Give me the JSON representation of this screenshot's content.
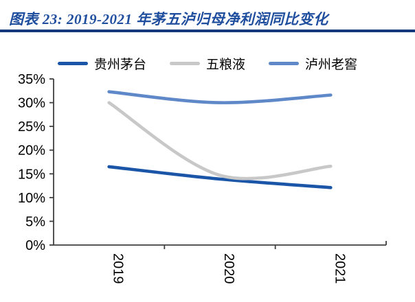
{
  "header": {
    "title": "图表 23:  2019-2021 年茅五泸归母净利润同比变化"
  },
  "colors": {
    "title_text": "#1F4E9E",
    "divider": "#16397E",
    "axis": "#3F3F3F",
    "tick_label": "#000000"
  },
  "chart_data": {
    "type": "line",
    "title": "2019-2021 年茅五泸归母净利润同比变化",
    "categories": [
      "2019",
      "2020",
      "2021"
    ],
    "series": [
      {
        "name": "贵州茅台",
        "values": [
          16.5,
          13.9,
          12.1
        ],
        "color": "#1A55A8"
      },
      {
        "name": "五粮液",
        "values": [
          30.0,
          14.7,
          16.6
        ],
        "color": "#C8C8C8"
      },
      {
        "name": "泸州老窖",
        "values": [
          32.3,
          30.0,
          31.6
        ],
        "color": "#5E88C8"
      }
    ],
    "ylabel": "",
    "xlabel": "",
    "ylim": [
      0,
      35
    ],
    "y_tick_step": 5,
    "y_tick_labels": [
      "0%",
      "5%",
      "10%",
      "15%",
      "20%",
      "25%",
      "30%",
      "35%"
    ],
    "x_labels_rotation_deg": 90,
    "grid": false,
    "smooth": true,
    "legend_position": "top"
  }
}
